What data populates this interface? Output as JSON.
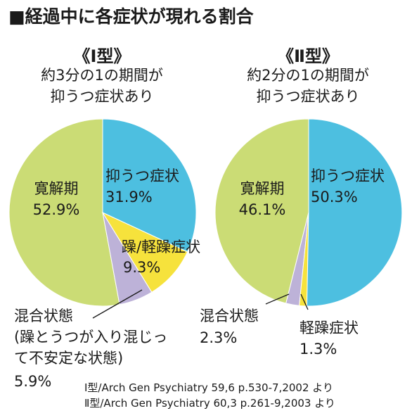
{
  "title": "■経過中に各症状が現れる割合",
  "chart_data": [
    {
      "type": "pie",
      "title": "《Ⅰ型》",
      "subtitle": [
        "約3分の1の期間が",
        "抑うつ症状あり"
      ],
      "slices": [
        {
          "label": "抑うつ症状",
          "value": 31.9,
          "value_text": "31.9%",
          "color": "#4dbfe0"
        },
        {
          "label": "躁/軽躁症状",
          "value": 9.3,
          "value_text": "9.3%",
          "color": "#f6e23c"
        },
        {
          "label": "混合状態",
          "label_extra": [
            "(躁とうつが入り混じっ",
            "て不安定な状態)"
          ],
          "value": 5.9,
          "value_text": "5.9%",
          "color": "#bdb2d8"
        },
        {
          "label": "寛解期",
          "value": 52.9,
          "value_text": "52.9%",
          "color": "#cbdc75"
        }
      ]
    },
    {
      "type": "pie",
      "title": "《Ⅱ型》",
      "subtitle": [
        "約2分の1の期間が",
        "抑うつ症状あり"
      ],
      "slices": [
        {
          "label": "抑うつ症状",
          "value": 50.3,
          "value_text": "50.3%",
          "color": "#4dbfe0"
        },
        {
          "label": "軽躁症状",
          "value": 1.3,
          "value_text": "1.3%",
          "color": "#f6e23c"
        },
        {
          "label": "混合状態",
          "value": 2.3,
          "value_text": "2.3%",
          "color": "#bdb2d8"
        },
        {
          "label": "寛解期",
          "value": 46.1,
          "value_text": "46.1%",
          "color": "#cbdc75"
        }
      ]
    }
  ],
  "sources": [
    "Ⅰ型/Arch Gen Psychiatry 59,6 p.530-7,2002 より",
    "Ⅱ型/Arch Gen Psychiatry 60,3 p.261-9,2003 より"
  ]
}
